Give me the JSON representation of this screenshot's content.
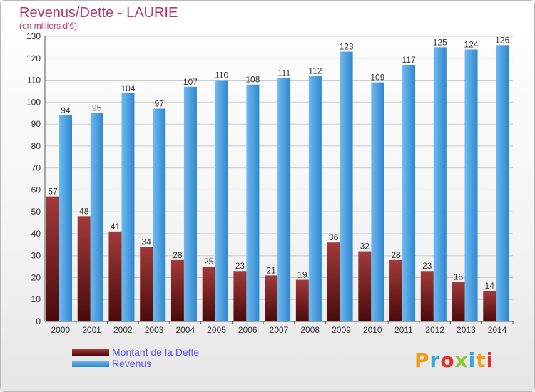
{
  "title": "Revenus/Dette - LAURIE",
  "subtitle": "(en milliers d'€)",
  "logo": {
    "text": "Proxiti",
    "letter_colors": [
      "#f39c12",
      "#3aa6e0",
      "#e2312b",
      "#8cc63f",
      "#3aa6e0",
      "#f39c12",
      "#e2312b"
    ]
  },
  "colors": {
    "debt_top": "#a23a3a",
    "debt_bottom": "#4a0a0a",
    "rev_top": "#6fbaf0",
    "rev_bottom": "#2f86cf",
    "grid": "#cccccc",
    "text": "#333333"
  },
  "chart_data": {
    "type": "bar",
    "title": "Revenus/Dette - LAURIE",
    "subtitle": "(en milliers d'€)",
    "categories": [
      "2000",
      "2001",
      "2002",
      "2003",
      "2004",
      "2005",
      "2006",
      "2007",
      "2008",
      "2009",
      "2010",
      "2011",
      "2012",
      "2013",
      "2014"
    ],
    "series": [
      {
        "name": "Montant de la Dette",
        "values": [
          57,
          48,
          41,
          34,
          28,
          25,
          23,
          21,
          19,
          36,
          32,
          28,
          23,
          18,
          14
        ]
      },
      {
        "name": "Revenus",
        "values": [
          94,
          95,
          104,
          97,
          107,
          110,
          108,
          111,
          112,
          123,
          109,
          117,
          125,
          124,
          126
        ]
      }
    ],
    "ylim": [
      0,
      130
    ],
    "yticks": [
      0,
      10,
      20,
      30,
      40,
      50,
      60,
      70,
      80,
      90,
      100,
      110,
      120,
      130
    ],
    "grid": true,
    "legend": "bottom-left"
  }
}
